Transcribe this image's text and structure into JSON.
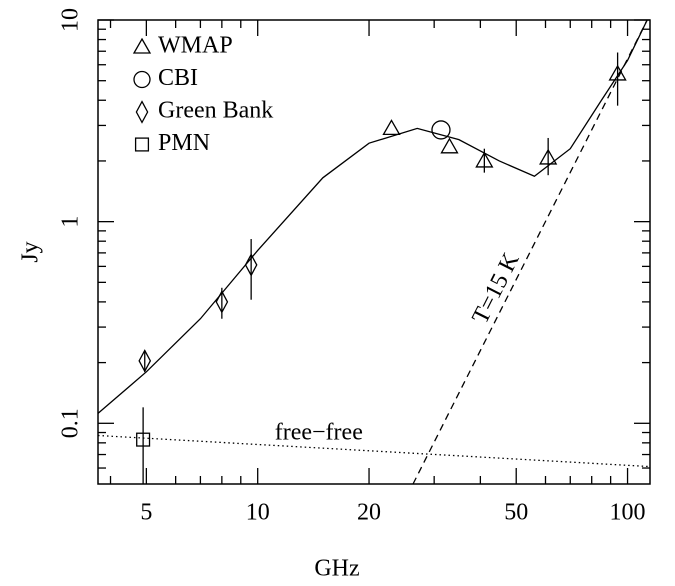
{
  "chart_data": {
    "type": "scatter",
    "xlabel": "GHz",
    "ylabel": "Jy",
    "log_x": true,
    "log_y": true,
    "xlim": [
      3.7,
      115
    ],
    "ylim": [
      0.05,
      10
    ],
    "xticks": [
      5,
      10,
      20,
      50,
      100
    ],
    "yticks": [
      0.1,
      1,
      10
    ],
    "xticks_minor": [
      4,
      6,
      7,
      8,
      9,
      30,
      40,
      60,
      70,
      80,
      90
    ],
    "yticks_minor": [
      0.06,
      0.07,
      0.08,
      0.09,
      0.2,
      0.3,
      0.4,
      0.5,
      0.6,
      0.7,
      0.8,
      0.9,
      2,
      3,
      4,
      5,
      6,
      7,
      8,
      9
    ],
    "legend": "upper left",
    "series": [
      {
        "name": "WMAP",
        "marker": "triangle",
        "color": "#000000",
        "x": [
          23,
          33,
          41,
          61,
          94
        ],
        "values": [
          2.9,
          2.35,
          2.0,
          2.07,
          5.4
        ],
        "err_low": [
          null,
          null,
          1.75,
          1.7,
          3.76
        ],
        "err_high": [
          null,
          null,
          2.3,
          2.6,
          6.9
        ]
      },
      {
        "name": "CBI",
        "marker": "circle",
        "color": "#000000",
        "x": [
          31.3
        ],
        "values": [
          2.85
        ],
        "err_low": [
          null
        ],
        "err_high": [
          null
        ]
      },
      {
        "name": "Green Bank",
        "marker": "diamond",
        "color": "#000000",
        "x": [
          4.95,
          8.0,
          9.6
        ],
        "values": [
          0.204,
          0.4,
          0.61
        ],
        "err_low": [
          0.18,
          0.33,
          0.41
        ],
        "err_high": [
          0.23,
          0.47,
          0.82
        ]
      },
      {
        "name": "PMN",
        "marker": "square",
        "color": "#000000",
        "x": [
          4.9
        ],
        "values": [
          0.083
        ],
        "err_low": [
          0.05
        ],
        "err_high": [
          0.12
        ]
      }
    ],
    "lines": [
      {
        "style": "solid",
        "color": "#000000",
        "x": [
          3.7,
          5,
          7,
          10,
          15,
          20,
          27,
          35,
          45,
          56,
          70,
          85,
          100,
          113
        ],
        "values": [
          0.112,
          0.18,
          0.33,
          0.72,
          1.65,
          2.45,
          2.9,
          2.55,
          2.0,
          1.68,
          2.3,
          4.0,
          6.3,
          10
        ]
      },
      {
        "style": "dashed",
        "color": "#000000",
        "label": "T=15 K",
        "x": [
          26.3,
          113
        ],
        "values": [
          0.05,
          10
        ]
      },
      {
        "style": "dotted",
        "color": "#000000",
        "label": "free−free",
        "x": [
          3.7,
          115
        ],
        "values": [
          0.087,
          0.061
        ]
      }
    ]
  }
}
